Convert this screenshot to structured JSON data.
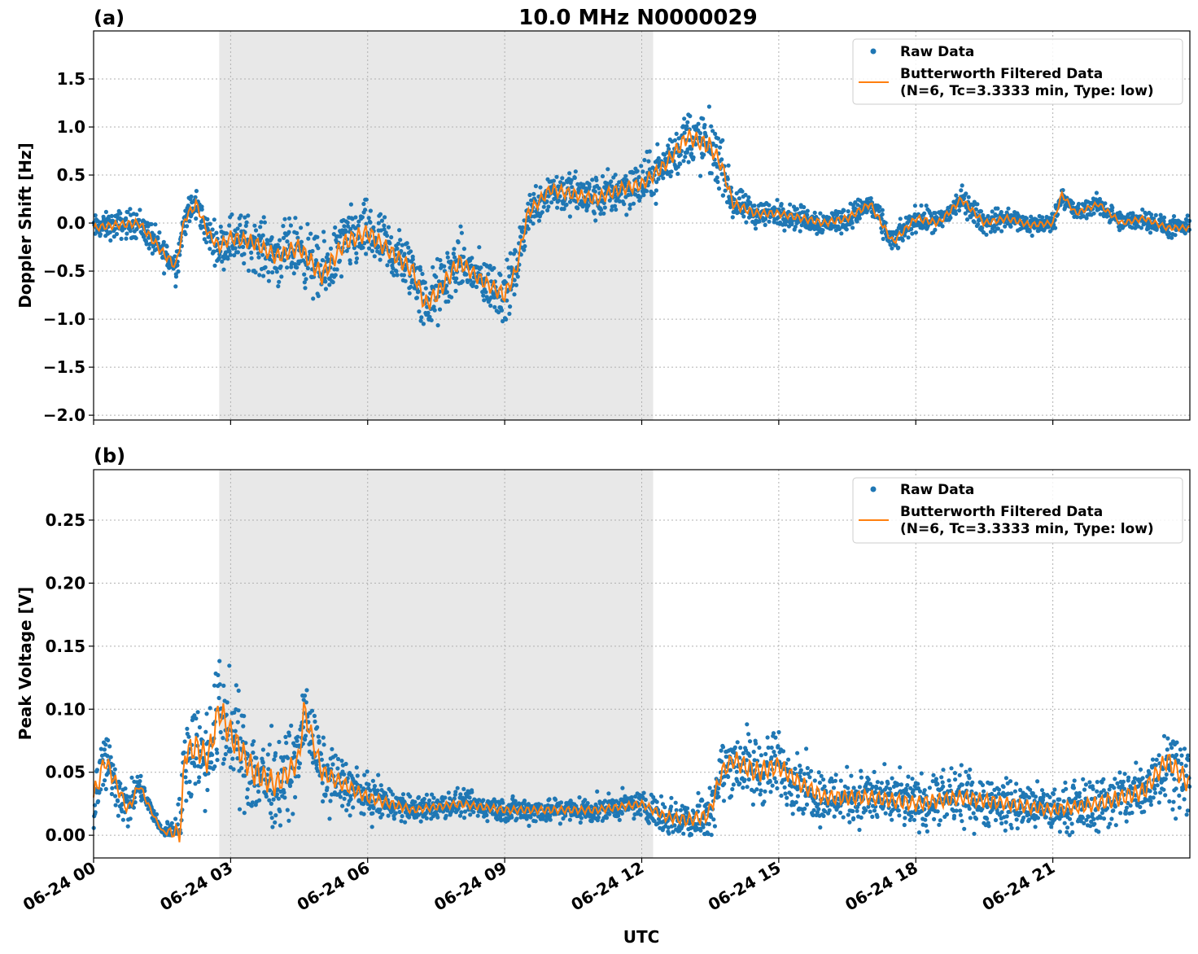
{
  "title": "10.0 MHz N0000029",
  "colors": {
    "raw": "#1f77b4",
    "filtered": "#ff7f0e",
    "shade": "#e8e8e8",
    "grid": "#b0b0b0"
  },
  "xaxis": {
    "label": "UTC",
    "range_hours": [
      0,
      24
    ],
    "ticks": [
      0,
      3,
      6,
      9,
      12,
      15,
      18,
      21
    ],
    "tick_labels": [
      "06-24 00",
      "06-24 03",
      "06-24 06",
      "06-24 09",
      "06-24 12",
      "06-24 15",
      "06-24 18",
      "06-24 21"
    ]
  },
  "chart_data": [
    {
      "type": "scatter",
      "panel_label": "(a)",
      "ylabel": "Doppler Shift [Hz]",
      "ylim": [
        -2.05,
        2.0
      ],
      "yticks": [
        -2.0,
        -1.5,
        -1.0,
        -0.5,
        0.0,
        0.5,
        1.0,
        1.5
      ],
      "ytick_labels": [
        "−2.0",
        "−1.5",
        "−1.0",
        "−0.5",
        "0.0",
        "0.5",
        "1.0",
        "1.5"
      ],
      "shaded_span_hours": [
        2.75,
        12.25
      ],
      "grid": true,
      "legend": {
        "placement": "top-right",
        "raw": "Raw Data",
        "filtered_line1": "Butterworth Filtered Data",
        "filtered_line2": "(N=6, Tc=3.3333 min, Type: low)"
      },
      "series": [
        {
          "name": "Butterworth Filtered Data",
          "x": [
            0,
            0.5,
            1.0,
            1.5,
            1.8,
            2.0,
            2.25,
            2.5,
            2.75,
            3.0,
            3.5,
            4.0,
            4.5,
            5.0,
            5.5,
            6.0,
            6.5,
            7.0,
            7.25,
            7.5,
            8.0,
            8.5,
            9.0,
            9.25,
            9.5,
            10.0,
            10.5,
            11.0,
            11.5,
            12.0,
            12.5,
            13.0,
            13.5,
            13.75,
            14.0,
            14.5,
            15.0,
            15.5,
            16.0,
            16.5,
            17.0,
            17.5,
            18.0,
            18.5,
            19.0,
            19.5,
            20.0,
            20.5,
            21.0,
            21.2,
            21.5,
            22.0,
            22.5,
            23.0,
            23.5,
            24.0
          ],
          "y": [
            -0.05,
            -0.02,
            0.0,
            -0.3,
            -0.45,
            0.05,
            0.2,
            -0.1,
            -0.25,
            -0.15,
            -0.2,
            -0.35,
            -0.25,
            -0.55,
            -0.2,
            -0.1,
            -0.3,
            -0.5,
            -0.85,
            -0.75,
            -0.4,
            -0.6,
            -0.75,
            -0.5,
            0.1,
            0.35,
            0.3,
            0.25,
            0.35,
            0.4,
            0.6,
            0.9,
            0.8,
            0.6,
            0.2,
            0.1,
            0.1,
            0.05,
            0.0,
            0.05,
            0.2,
            -0.2,
            0.05,
            0.0,
            0.25,
            0.0,
            0.05,
            -0.02,
            0.0,
            0.3,
            0.1,
            0.2,
            0.0,
            0.05,
            -0.05,
            -0.05
          ]
        },
        {
          "name": "Raw Data",
          "spread_x": [
            0,
            1.5,
            2.5,
            3.0,
            5.0,
            7.0,
            7.5,
            8.5,
            9.0,
            9.5,
            12.5,
            13.5,
            14.0,
            15.0,
            17.0,
            19.0,
            21.0,
            24.0
          ],
          "spread": [
            0.15,
            0.2,
            0.2,
            0.3,
            0.4,
            0.35,
            0.4,
            0.3,
            0.35,
            0.25,
            0.3,
            0.4,
            0.2,
            0.15,
            0.15,
            0.15,
            0.12,
            0.12
          ]
        }
      ]
    },
    {
      "type": "scatter",
      "panel_label": "(b)",
      "ylabel": "Peak Voltage [V]",
      "ylim": [
        -0.018,
        0.29
      ],
      "yticks": [
        0.0,
        0.05,
        0.1,
        0.15,
        0.2,
        0.25
      ],
      "ytick_labels": [
        "0.00",
        "0.05",
        "0.10",
        "0.15",
        "0.20",
        "0.25"
      ],
      "shaded_span_hours": [
        2.75,
        12.25
      ],
      "grid": true,
      "legend": {
        "placement": "top-right",
        "raw": "Raw Data",
        "filtered_line1": "Butterworth Filtered Data",
        "filtered_line2": "(N=6, Tc=3.3333 min, Type: low)"
      },
      "series": [
        {
          "name": "Butterworth Filtered Data",
          "x": [
            0,
            0.25,
            0.5,
            0.75,
            1.0,
            1.25,
            1.4,
            1.5,
            1.9,
            2.0,
            2.25,
            2.5,
            2.75,
            3.0,
            3.5,
            4.0,
            4.5,
            4.6,
            5.0,
            5.5,
            6.0,
            7.0,
            8.0,
            9.0,
            10.0,
            11.0,
            12.0,
            12.5,
            13.0,
            13.4,
            13.5,
            13.75,
            14.0,
            14.5,
            15.0,
            15.5,
            16.0,
            17.0,
            18.0,
            19.0,
            20.0,
            21.0,
            22.0,
            22.5,
            23.0,
            23.5,
            24.0
          ],
          "y": [
            0.03,
            0.06,
            0.04,
            0.02,
            0.04,
            0.02,
            0.01,
            0.003,
            0.002,
            0.065,
            0.07,
            0.06,
            0.1,
            0.08,
            0.05,
            0.04,
            0.06,
            0.1,
            0.05,
            0.04,
            0.03,
            0.02,
            0.025,
            0.02,
            0.02,
            0.02,
            0.025,
            0.015,
            0.012,
            0.015,
            0.02,
            0.05,
            0.06,
            0.05,
            0.055,
            0.04,
            0.03,
            0.03,
            0.025,
            0.03,
            0.025,
            0.02,
            0.025,
            0.03,
            0.035,
            0.06,
            0.04
          ]
        },
        {
          "name": "Raw Data",
          "spread_x": [
            0,
            1.5,
            2.0,
            2.75,
            4.0,
            5.0,
            6.0,
            7.0,
            12.0,
            13.5,
            14.5,
            15.0,
            16.0,
            19.0,
            21.0,
            24.0
          ],
          "spread": [
            0.035,
            0.003,
            0.04,
            0.05,
            0.04,
            0.03,
            0.02,
            0.012,
            0.012,
            0.025,
            0.035,
            0.03,
            0.025,
            0.025,
            0.02,
            0.035
          ]
        }
      ]
    }
  ]
}
